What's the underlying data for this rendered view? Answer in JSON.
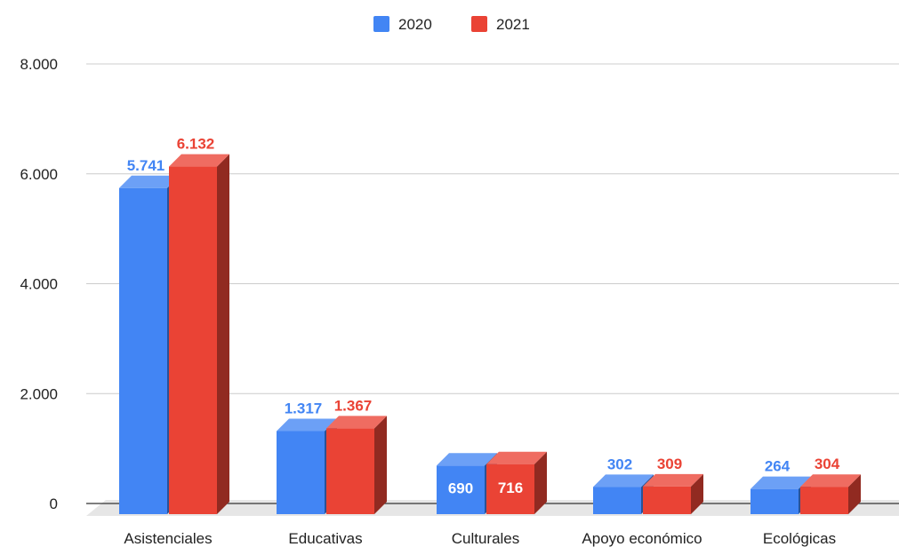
{
  "chart_data": {
    "type": "bar",
    "title": "",
    "xlabel": "",
    "ylabel": "",
    "categories": [
      "Asistenciales",
      "Educativas",
      "Culturales",
      "Apoyo económico",
      "Ecológicas"
    ],
    "series": [
      {
        "name": "2020",
        "color": "#4285f4",
        "values": [
          5741,
          1317,
          690,
          302,
          264
        ],
        "labels": [
          "5.741",
          "1.317",
          "690",
          "302",
          "264"
        ]
      },
      {
        "name": "2021",
        "color": "#ea4335",
        "values": [
          6132,
          1367,
          716,
          309,
          304
        ],
        "labels": [
          "6.132",
          "1.367",
          "716",
          "309",
          "304"
        ]
      }
    ],
    "yticks": [
      {
        "value": 0,
        "label": "0"
      },
      {
        "value": 2000,
        "label": "2.000"
      },
      {
        "value": 4000,
        "label": "4.000"
      },
      {
        "value": 6000,
        "label": "6.000"
      },
      {
        "value": 8000,
        "label": "8.000"
      }
    ],
    "ylim": [
      0,
      8000
    ],
    "grid": true,
    "legend_position": "top-center",
    "style": "3d"
  }
}
